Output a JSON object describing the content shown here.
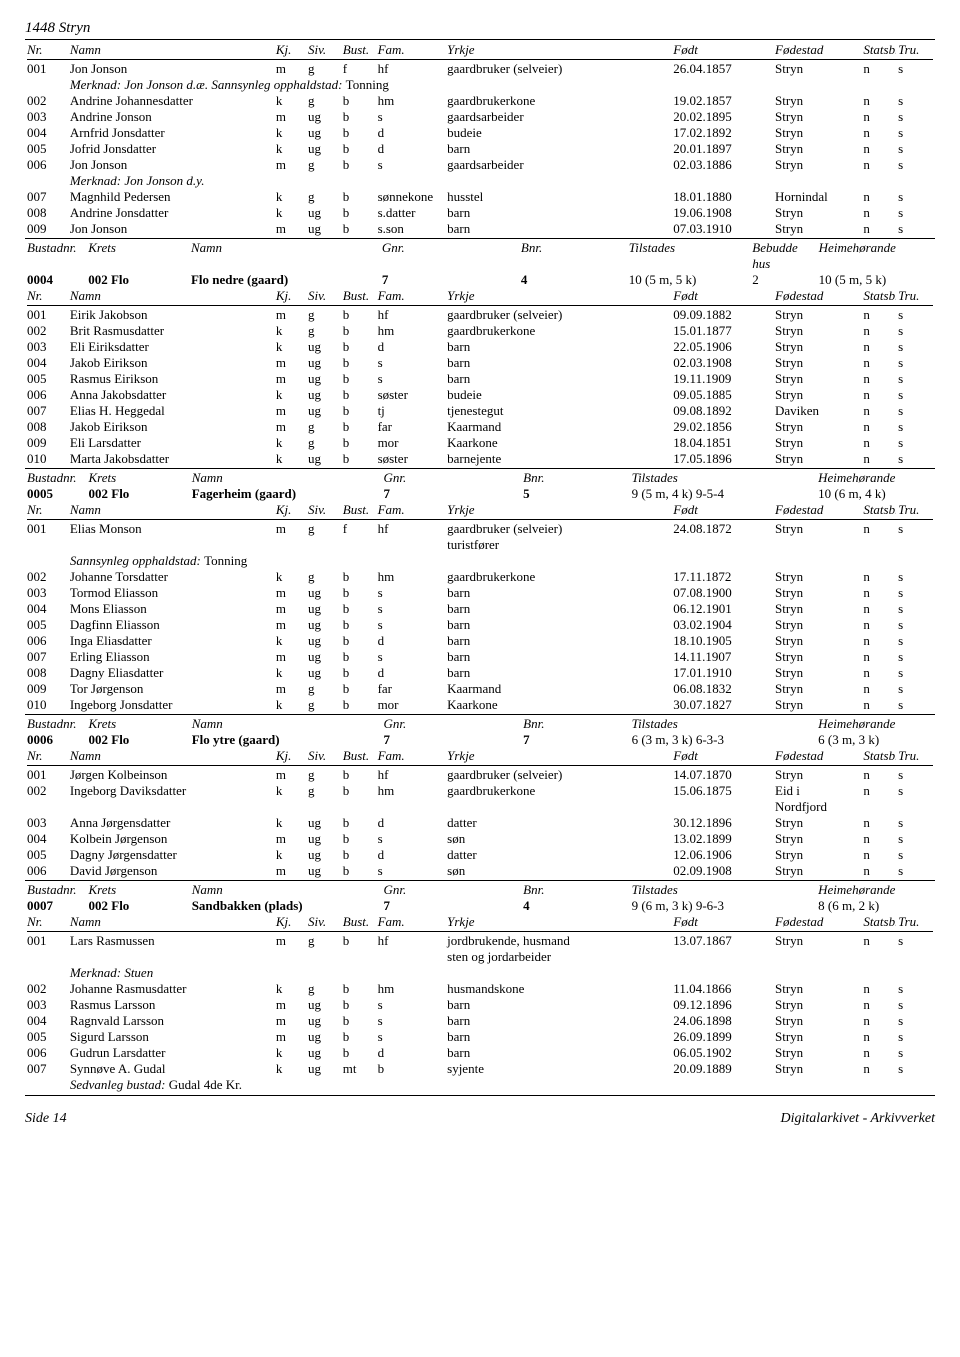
{
  "title": "1448 Stryn",
  "footer": {
    "left": "Side 14",
    "right": "Digitalarkivet - Arkivverket"
  },
  "labels": {
    "nr": "Nr.",
    "namn": "Namn",
    "kj": "Kj.",
    "siv": "Siv.",
    "bust": "Bust.",
    "fam": "Fam.",
    "yrkje": "Yrkje",
    "fodd": "Født",
    "fstad": "Fødestad",
    "statsb": "Statsb.",
    "tru": "Tru.",
    "bustadnr": "Bustadnr.",
    "krets": "Krets",
    "gnr": "Gnr.",
    "bnr": "Bnr.",
    "tilstades": "Tilstades",
    "bebudde": "Bebudde",
    "heime": "Heimehørande",
    "hus": "hus",
    "merknad": "Merknad:",
    "sannsynleg": "Sannsynleg opphaldstad:",
    "sedvanleg": "Sedvanleg bustad:"
  },
  "sections": [
    {
      "type": "people",
      "rows": [
        {
          "nr": "001",
          "namn": "Jon Jonson",
          "kj": "m",
          "siv": "g",
          "bust": "f",
          "fam": "hf",
          "yrkje": "gaardbruker (selveier)",
          "fodd": "26.04.1857",
          "fstad": "Stryn",
          "stat": "n",
          "tru": "s"
        },
        {
          "merknad": "Jon Jonson d.æ.",
          "sann": "Tonning"
        },
        {
          "nr": "002",
          "namn": "Andrine Johannesdatter",
          "kj": "k",
          "siv": "g",
          "bust": "b",
          "fam": "hm",
          "yrkje": "gaardbrukerkone",
          "fodd": "19.02.1857",
          "fstad": "Stryn",
          "stat": "n",
          "tru": "s"
        },
        {
          "nr": "003",
          "namn": "Andrine Jonson",
          "kj": "m",
          "siv": "ug",
          "bust": "b",
          "fam": "s",
          "yrkje": "gaardsarbeider",
          "fodd": "20.02.1895",
          "fstad": "Stryn",
          "stat": "n",
          "tru": "s"
        },
        {
          "nr": "004",
          "namn": "Arnfrid Jonsdatter",
          "kj": "k",
          "siv": "ug",
          "bust": "b",
          "fam": "d",
          "yrkje": "budeie",
          "fodd": "17.02.1892",
          "fstad": "Stryn",
          "stat": "n",
          "tru": "s"
        },
        {
          "nr": "005",
          "namn": "Jofrid Jonsdatter",
          "kj": "k",
          "siv": "ug",
          "bust": "b",
          "fam": "d",
          "yrkje": "barn",
          "fodd": "20.01.1897",
          "fstad": "Stryn",
          "stat": "n",
          "tru": "s"
        },
        {
          "nr": "006",
          "namn": "Jon Jonson",
          "kj": "m",
          "siv": "g",
          "bust": "b",
          "fam": "s",
          "yrkje": "gaardsarbeider",
          "fodd": "02.03.1886",
          "fstad": "Stryn",
          "stat": "n",
          "tru": "s"
        },
        {
          "merknad": "Jon Jonson d.y."
        },
        {
          "nr": "007",
          "namn": "Magnhild Pedersen",
          "kj": "k",
          "siv": "g",
          "bust": "b",
          "fam": "sønnekone",
          "yrkje": "husstel",
          "fodd": "18.01.1880",
          "fstad": "Hornindal",
          "stat": "n",
          "tru": "s"
        },
        {
          "nr": "008",
          "namn": "Andrine Jonsdatter",
          "kj": "k",
          "siv": "ug",
          "bust": "b",
          "fam": "s.datter",
          "yrkje": "barn",
          "fodd": "19.06.1908",
          "fstad": "Stryn",
          "stat": "n",
          "tru": "s"
        },
        {
          "nr": "009",
          "namn": "Jon Jonson",
          "kj": "m",
          "siv": "ug",
          "bust": "b",
          "fam": "s.son",
          "yrkje": "barn",
          "fodd": "07.03.1910",
          "fstad": "Stryn",
          "stat": "n",
          "tru": "s"
        }
      ]
    },
    {
      "type": "bustadB",
      "nr": "0004",
      "krets": "002 Flo",
      "namn": "Flo nedre (gaard)",
      "gnr": "7",
      "bnr": "4",
      "til": "10 (5 m, 5 k)",
      "beb": "2",
      "heim": "10 (5 m, 5 k)"
    },
    {
      "type": "people",
      "rows": [
        {
          "nr": "001",
          "namn": "Eirik Jakobson",
          "kj": "m",
          "siv": "g",
          "bust": "b",
          "fam": "hf",
          "yrkje": "gaardbruker (selveier)",
          "fodd": "09.09.1882",
          "fstad": "Stryn",
          "stat": "n",
          "tru": "s"
        },
        {
          "nr": "002",
          "namn": "Brit Rasmusdatter",
          "kj": "k",
          "siv": "g",
          "bust": "b",
          "fam": "hm",
          "yrkje": "gaardbrukerkone",
          "fodd": "15.01.1877",
          "fstad": "Stryn",
          "stat": "n",
          "tru": "s"
        },
        {
          "nr": "003",
          "namn": "Eli Eiriksdatter",
          "kj": "k",
          "siv": "ug",
          "bust": "b",
          "fam": "d",
          "yrkje": "barn",
          "fodd": "22.05.1906",
          "fstad": "Stryn",
          "stat": "n",
          "tru": "s"
        },
        {
          "nr": "004",
          "namn": "Jakob Eirikson",
          "kj": "m",
          "siv": "ug",
          "bust": "b",
          "fam": "s",
          "yrkje": "barn",
          "fodd": "02.03.1908",
          "fstad": "Stryn",
          "stat": "n",
          "tru": "s"
        },
        {
          "nr": "005",
          "namn": "Rasmus Eirikson",
          "kj": "m",
          "siv": "ug",
          "bust": "b",
          "fam": "s",
          "yrkje": "barn",
          "fodd": "19.11.1909",
          "fstad": "Stryn",
          "stat": "n",
          "tru": "s"
        },
        {
          "nr": "006",
          "namn": "Anna Jakobsdatter",
          "kj": "k",
          "siv": "ug",
          "bust": "b",
          "fam": "søster",
          "yrkje": "budeie",
          "fodd": "09.05.1885",
          "fstad": "Stryn",
          "stat": "n",
          "tru": "s"
        },
        {
          "nr": "007",
          "namn": "Elias H. Heggedal",
          "kj": "m",
          "siv": "ug",
          "bust": "b",
          "fam": "tj",
          "yrkje": "tjenestegut",
          "fodd": "09.08.1892",
          "fstad": "Daviken",
          "stat": "n",
          "tru": "s"
        },
        {
          "nr": "008",
          "namn": "Jakob Eirikson",
          "kj": "m",
          "siv": "g",
          "bust": "b",
          "fam": "far",
          "yrkje": "Kaarmand",
          "fodd": "29.02.1856",
          "fstad": "Stryn",
          "stat": "n",
          "tru": "s"
        },
        {
          "nr": "009",
          "namn": "Eli Larsdatter",
          "kj": "k",
          "siv": "g",
          "bust": "b",
          "fam": "mor",
          "yrkje": "Kaarkone",
          "fodd": "18.04.1851",
          "fstad": "Stryn",
          "stat": "n",
          "tru": "s"
        },
        {
          "nr": "010",
          "namn": "Marta Jakobsdatter",
          "kj": "k",
          "siv": "ug",
          "bust": "b",
          "fam": "søster",
          "yrkje": "barnejente",
          "fodd": "17.05.1896",
          "fstad": "Stryn",
          "stat": "n",
          "tru": "s"
        }
      ]
    },
    {
      "type": "bustad",
      "nr": "0005",
      "krets": "002 Flo",
      "namn": "Fagerheim (gaard)",
      "gnr": "7",
      "bnr": "5",
      "til": "9 (5 m, 4 k) 9-5-4",
      "heim": "10 (6 m, 4 k)"
    },
    {
      "type": "people",
      "rows": [
        {
          "nr": "001",
          "namn": "Elias Monson",
          "kj": "m",
          "siv": "g",
          "bust": "f",
          "fam": "hf",
          "yrkje": "gaardbruker (selveier)",
          "fodd": "24.08.1872",
          "fstad": "Stryn",
          "stat": "n",
          "tru": "s",
          "yrkje2": "turistfører"
        },
        {
          "sann": "Tonning"
        },
        {
          "nr": "002",
          "namn": "Johanne Torsdatter",
          "kj": "k",
          "siv": "g",
          "bust": "b",
          "fam": "hm",
          "yrkje": "gaardbrukerkone",
          "fodd": "17.11.1872",
          "fstad": "Stryn",
          "stat": "n",
          "tru": "s"
        },
        {
          "nr": "003",
          "namn": "Tormod Eliasson",
          "kj": "m",
          "siv": "ug",
          "bust": "b",
          "fam": "s",
          "yrkje": "barn",
          "fodd": "07.08.1900",
          "fstad": "Stryn",
          "stat": "n",
          "tru": "s"
        },
        {
          "nr": "004",
          "namn": "Mons Eliasson",
          "kj": "m",
          "siv": "ug",
          "bust": "b",
          "fam": "s",
          "yrkje": "barn",
          "fodd": "06.12.1901",
          "fstad": "Stryn",
          "stat": "n",
          "tru": "s"
        },
        {
          "nr": "005",
          "namn": "Dagfinn Eliasson",
          "kj": "m",
          "siv": "ug",
          "bust": "b",
          "fam": "s",
          "yrkje": "barn",
          "fodd": "03.02.1904",
          "fstad": "Stryn",
          "stat": "n",
          "tru": "s"
        },
        {
          "nr": "006",
          "namn": "Inga Eliasdatter",
          "kj": "k",
          "siv": "ug",
          "bust": "b",
          "fam": "d",
          "yrkje": "barn",
          "fodd": "18.10.1905",
          "fstad": "Stryn",
          "stat": "n",
          "tru": "s"
        },
        {
          "nr": "007",
          "namn": "Erling Eliasson",
          "kj": "m",
          "siv": "ug",
          "bust": "b",
          "fam": "s",
          "yrkje": "barn",
          "fodd": "14.11.1907",
          "fstad": "Stryn",
          "stat": "n",
          "tru": "s"
        },
        {
          "nr": "008",
          "namn": "Dagny Eliasdatter",
          "kj": "k",
          "siv": "ug",
          "bust": "b",
          "fam": "d",
          "yrkje": "barn",
          "fodd": "17.01.1910",
          "fstad": "Stryn",
          "stat": "n",
          "tru": "s"
        },
        {
          "nr": "009",
          "namn": "Tor Jørgenson",
          "kj": "m",
          "siv": "g",
          "bust": "b",
          "fam": "far",
          "yrkje": "Kaarmand",
          "fodd": "06.08.1832",
          "fstad": "Stryn",
          "stat": "n",
          "tru": "s"
        },
        {
          "nr": "010",
          "namn": "Ingeborg Jonsdatter",
          "kj": "k",
          "siv": "g",
          "bust": "b",
          "fam": "mor",
          "yrkje": "Kaarkone",
          "fodd": "30.07.1827",
          "fstad": "Stryn",
          "stat": "n",
          "tru": "s"
        }
      ]
    },
    {
      "type": "bustad",
      "nr": "0006",
      "krets": "002 Flo",
      "namn": "Flo ytre (gaard)",
      "gnr": "7",
      "bnr": "7",
      "til": "6 (3 m, 3 k) 6-3-3",
      "heim": "6 (3 m, 3 k)"
    },
    {
      "type": "people",
      "rows": [
        {
          "nr": "001",
          "namn": "Jørgen Kolbeinson",
          "kj": "m",
          "siv": "g",
          "bust": "b",
          "fam": "hf",
          "yrkje": "gaardbruker (selveier)",
          "fodd": "14.07.1870",
          "fstad": "Stryn",
          "stat": "n",
          "tru": "s"
        },
        {
          "nr": "002",
          "namn": "Ingeborg Daviksdatter",
          "kj": "k",
          "siv": "g",
          "bust": "b",
          "fam": "hm",
          "yrkje": "gaardbrukerkone",
          "fodd": "15.06.1875",
          "fstad": "Eid i",
          "stat": "n",
          "tru": "s",
          "fstad2": "Nordfjord"
        },
        {
          "nr": "003",
          "namn": "Anna Jørgensdatter",
          "kj": "k",
          "siv": "ug",
          "bust": "b",
          "fam": "d",
          "yrkje": "datter",
          "fodd": "30.12.1896",
          "fstad": "Stryn",
          "stat": "n",
          "tru": "s"
        },
        {
          "nr": "004",
          "namn": "Kolbein Jørgenson",
          "kj": "m",
          "siv": "ug",
          "bust": "b",
          "fam": "s",
          "yrkje": "søn",
          "fodd": "13.02.1899",
          "fstad": "Stryn",
          "stat": "n",
          "tru": "s"
        },
        {
          "nr": "005",
          "namn": "Dagny Jørgensdatter",
          "kj": "k",
          "siv": "ug",
          "bust": "b",
          "fam": "d",
          "yrkje": "datter",
          "fodd": "12.06.1906",
          "fstad": "Stryn",
          "stat": "n",
          "tru": "s"
        },
        {
          "nr": "006",
          "namn": "David Jørgenson",
          "kj": "m",
          "siv": "ug",
          "bust": "b",
          "fam": "s",
          "yrkje": "søn",
          "fodd": "02.09.1908",
          "fstad": "Stryn",
          "stat": "n",
          "tru": "s"
        }
      ]
    },
    {
      "type": "bustad",
      "nr": "0007",
      "krets": "002 Flo",
      "namn": "Sandbakken (plads)",
      "gnr": "7",
      "bnr": "4",
      "til": "9 (6 m, 3 k) 9-6-3",
      "heim": "8 (6 m, 2 k)"
    },
    {
      "type": "people",
      "rows": [
        {
          "nr": "001",
          "namn": "Lars Rasmussen",
          "kj": "m",
          "siv": "g",
          "bust": "b",
          "fam": "hf",
          "yrkje": "jordbrukende, husmand",
          "fodd": "13.07.1867",
          "fstad": "Stryn",
          "stat": "n",
          "tru": "s",
          "yrkje2": "sten og jordarbeider"
        },
        {
          "merknad": "Stuen"
        },
        {
          "nr": "002",
          "namn": "Johanne Rasmusdatter",
          "kj": "k",
          "siv": "g",
          "bust": "b",
          "fam": "hm",
          "yrkje": "husmandskone",
          "fodd": "11.04.1866",
          "fstad": "Stryn",
          "stat": "n",
          "tru": "s"
        },
        {
          "nr": "003",
          "namn": "Rasmus Larsson",
          "kj": "m",
          "siv": "ug",
          "bust": "b",
          "fam": "s",
          "yrkje": "barn",
          "fodd": "09.12.1896",
          "fstad": "Stryn",
          "stat": "n",
          "tru": "s"
        },
        {
          "nr": "004",
          "namn": "Ragnvald Larsson",
          "kj": "m",
          "siv": "ug",
          "bust": "b",
          "fam": "s",
          "yrkje": "barn",
          "fodd": "24.06.1898",
          "fstad": "Stryn",
          "stat": "n",
          "tru": "s"
        },
        {
          "nr": "005",
          "namn": "Sigurd Larsson",
          "kj": "m",
          "siv": "ug",
          "bust": "b",
          "fam": "s",
          "yrkje": "barn",
          "fodd": "26.09.1899",
          "fstad": "Stryn",
          "stat": "n",
          "tru": "s"
        },
        {
          "nr": "006",
          "namn": "Gudrun Larsdatter",
          "kj": "k",
          "siv": "ug",
          "bust": "b",
          "fam": "d",
          "yrkje": "barn",
          "fodd": "06.05.1902",
          "fstad": "Stryn",
          "stat": "n",
          "tru": "s"
        },
        {
          "nr": "007",
          "namn": "Synnøve A. Gudal",
          "kj": "k",
          "siv": "ug",
          "bust": "mt",
          "fam": "b",
          "yrkje": "syjente",
          "fodd": "20.09.1889",
          "fstad": "Stryn",
          "stat": "n",
          "tru": "s"
        },
        {
          "sedv": "Gudal 4de Kr."
        }
      ]
    }
  ]
}
